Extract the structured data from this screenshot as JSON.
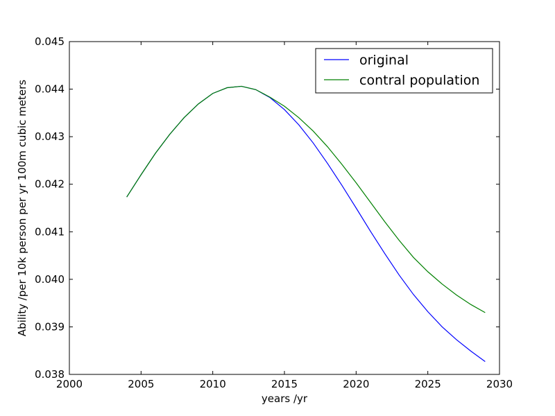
{
  "chart_data": {
    "type": "line",
    "title": "",
    "xlabel": "years /yr",
    "ylabel": "Ability /per 10k person per yr 100m cubic meters",
    "xlim": [
      2000,
      2030
    ],
    "ylim": [
      0.038,
      0.045
    ],
    "xticks": [
      "2000",
      "2005",
      "2010",
      "2015",
      "2020",
      "2025",
      "2030"
    ],
    "yticks": [
      "0.038",
      "0.039",
      "0.040",
      "0.041",
      "0.042",
      "0.043",
      "0.044",
      "0.045"
    ],
    "grid": false,
    "legend_position": "top-right",
    "x": [
      2004,
      2005,
      2006,
      2007,
      2008,
      2009,
      2010,
      2011,
      2012,
      2013,
      2014,
      2015,
      2016,
      2017,
      2018,
      2019,
      2020,
      2021,
      2022,
      2023,
      2024,
      2025,
      2026,
      2027,
      2028,
      2029
    ],
    "series": [
      {
        "name": "original",
        "color": "#0000ff",
        "values": [
          0.04173,
          0.0422,
          0.04265,
          0.04305,
          0.0434,
          0.04369,
          0.04391,
          0.04403,
          0.04406,
          0.04399,
          0.04382,
          0.04357,
          0.04325,
          0.04287,
          0.04244,
          0.04198,
          0.0415,
          0.04101,
          0.04054,
          0.04009,
          0.03968,
          0.03932,
          0.039,
          0.03873,
          0.03849,
          0.03827
        ]
      },
      {
        "name": "contral population",
        "color": "#008000",
        "values": [
          0.04173,
          0.0422,
          0.04265,
          0.04305,
          0.0434,
          0.04369,
          0.04391,
          0.04403,
          0.04406,
          0.04399,
          0.04383,
          0.04364,
          0.0434,
          0.04312,
          0.04279,
          0.04242,
          0.04203,
          0.04162,
          0.04121,
          0.04082,
          0.04046,
          0.04016,
          0.0399,
          0.03967,
          0.03947,
          0.0393
        ]
      }
    ]
  }
}
